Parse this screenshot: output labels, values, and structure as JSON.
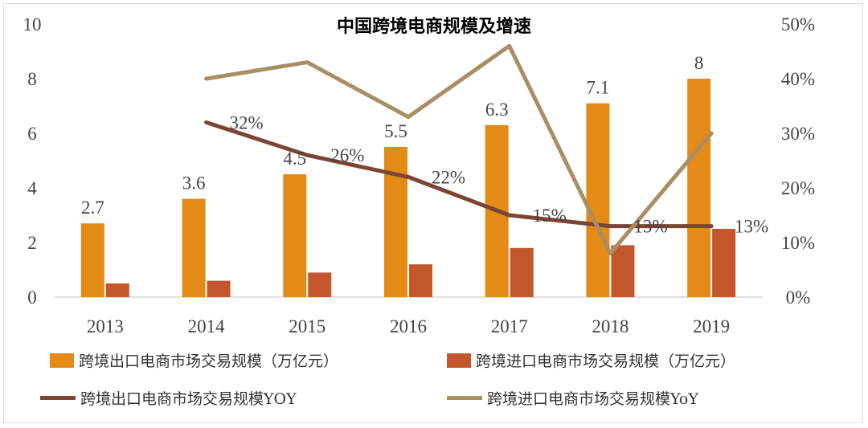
{
  "chart_data": {
    "type": "bar",
    "title": "中国跨境电商规模及增速",
    "categories": [
      "2013",
      "2014",
      "2015",
      "2016",
      "2017",
      "2018",
      "2019"
    ],
    "ylim": [
      0,
      10
    ],
    "y_ticks": [
      "0",
      "2",
      "4",
      "6",
      "8",
      "10"
    ],
    "y2lim": [
      0,
      50
    ],
    "y2_ticks": [
      "0%",
      "10%",
      "20%",
      "30%",
      "40%",
      "50%"
    ],
    "series": [
      {
        "name": "跨境出口电商市场交易规模（万亿元）",
        "kind": "bar",
        "axis": "left",
        "color": "#E48B17",
        "values": [
          2.7,
          3.6,
          4.5,
          5.5,
          6.3,
          7.1,
          8
        ],
        "labels": [
          "2.7",
          "3.6",
          "4.5",
          "5.5",
          "6.3",
          "7.1",
          "8"
        ]
      },
      {
        "name": "跨境进口电商市场交易规模（万亿元）",
        "kind": "bar",
        "axis": "left",
        "color": "#C3572B",
        "values": [
          0.5,
          0.6,
          0.9,
          1.2,
          1.8,
          1.9,
          2.5
        ],
        "labels": []
      },
      {
        "name": "跨境出口电商市场交易规模YOY",
        "kind": "line",
        "axis": "right",
        "color": "#7A4633",
        "values": [
          null,
          32,
          26,
          22,
          15,
          13,
          13
        ],
        "labels": [
          "",
          "32%",
          "26%",
          "22%",
          "15%",
          "13%",
          "13%"
        ]
      },
      {
        "name": "跨境进口电商市场交易规模YoY",
        "kind": "line",
        "axis": "right",
        "color": "#A98E63",
        "values": [
          null,
          40,
          43,
          33,
          46,
          8,
          30
        ],
        "labels": []
      }
    ],
    "grid": false,
    "legend_position": "bottom"
  }
}
